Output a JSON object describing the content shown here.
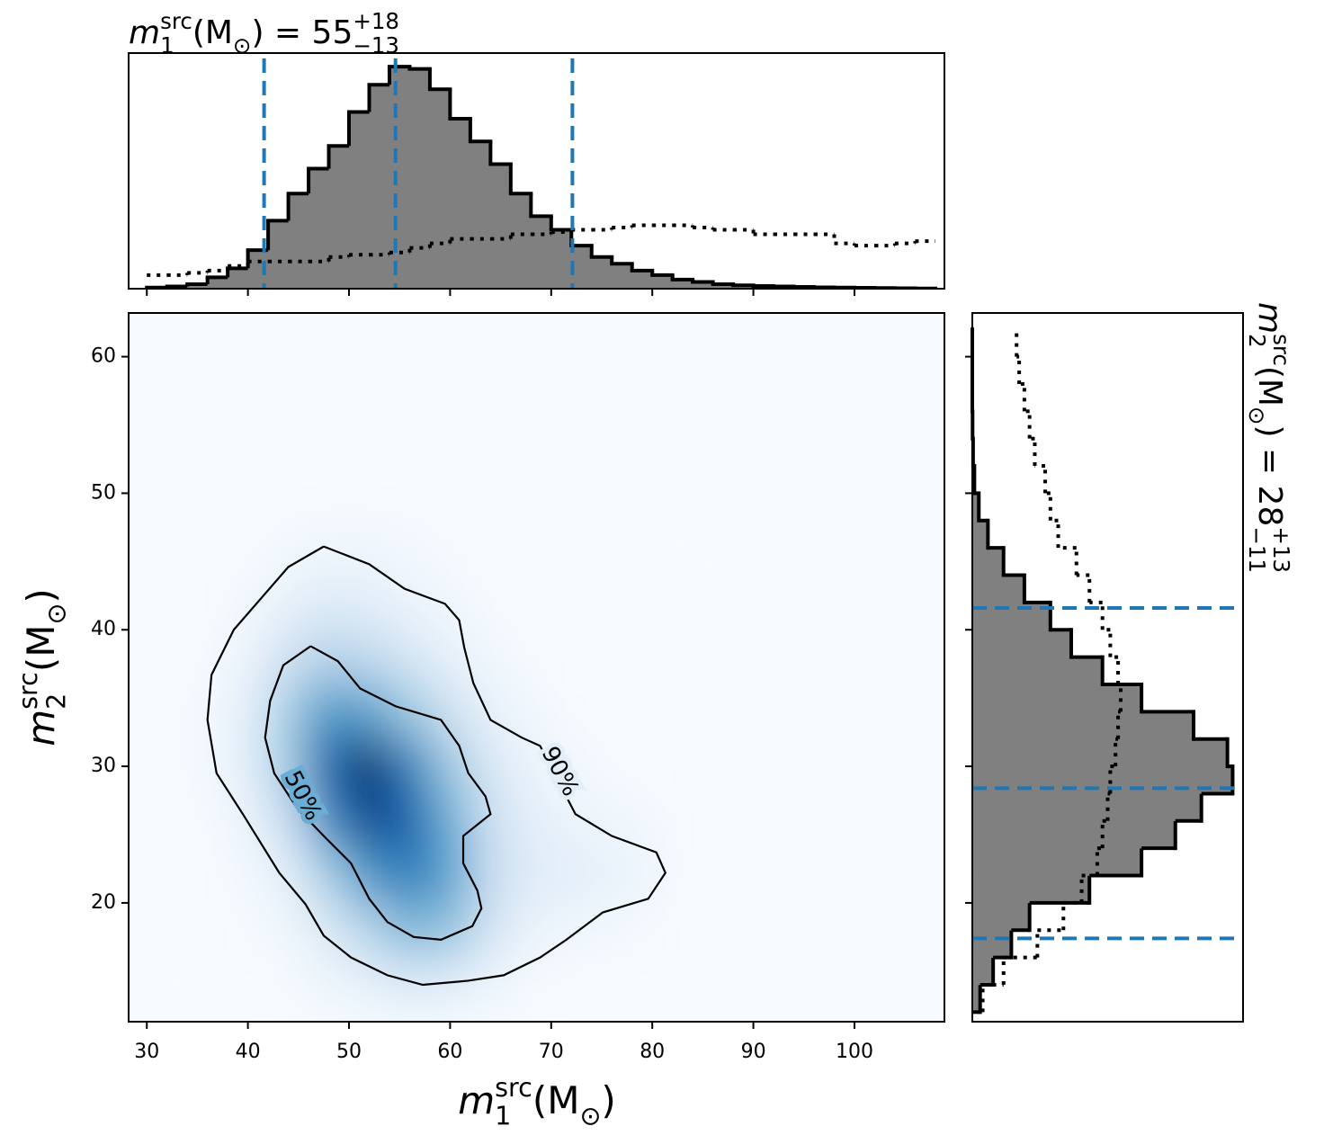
{
  "chart_data": [
    {
      "type": "heatmap",
      "x_label": [
        {
          "text": "m",
          "style": "italic"
        },
        {
          "text": "1",
          "style": "sub"
        },
        {
          "text": "src",
          "style": "sup",
          "stack": true
        },
        {
          "text": " (M"
        },
        {
          "text": "⊙",
          "style": "sub"
        },
        {
          "text": ")"
        }
      ],
      "y_label": [
        {
          "text": "m",
          "style": "italic"
        },
        {
          "text": "2",
          "style": "sub"
        },
        {
          "text": "src",
          "style": "sup",
          "stack": true
        },
        {
          "text": " (M"
        },
        {
          "text": "⊙",
          "style": "sub"
        },
        {
          "text": ")"
        }
      ],
      "xlim": [
        28.2,
        108.9
      ],
      "ylim": [
        11.3,
        63.2
      ],
      "xticks": [
        30,
        40,
        50,
        60,
        70,
        80,
        90,
        100
      ],
      "yticks": [
        20,
        30,
        40,
        50,
        60
      ],
      "colormap": [
        "#f7fbff",
        "#deebf7",
        "#c6dbef",
        "#9ecae1",
        "#6baed6",
        "#4292c6",
        "#2171b5",
        "#08519c",
        "#08306b"
      ],
      "density": {
        "x": [
          36,
          40,
          44,
          48,
          52,
          56,
          60,
          64,
          68,
          72,
          76,
          80,
          84
        ],
        "y": [
          46,
          42,
          38,
          34,
          30,
          26,
          22,
          18,
          14
        ],
        "values": [
          [
            0,
            0,
            2,
            4,
            4,
            2,
            1,
            0,
            0,
            0,
            0,
            0,
            0
          ],
          [
            0,
            2,
            8,
            12,
            10,
            6,
            3,
            1,
            0,
            0,
            0,
            0,
            0
          ],
          [
            1,
            6,
            20,
            30,
            26,
            16,
            8,
            3,
            1,
            0,
            0,
            0,
            0
          ],
          [
            2,
            10,
            35,
            60,
            55,
            38,
            20,
            8,
            3,
            1,
            0,
            0,
            0
          ],
          [
            2,
            10,
            38,
            80,
            100,
            70,
            38,
            15,
            6,
            3,
            1,
            0,
            0
          ],
          [
            1,
            6,
            25,
            65,
            90,
            80,
            50,
            22,
            10,
            6,
            4,
            2,
            0
          ],
          [
            0,
            2,
            10,
            35,
            60,
            70,
            55,
            25,
            12,
            10,
            8,
            4,
            0
          ],
          [
            0,
            1,
            4,
            14,
            30,
            45,
            40,
            18,
            6,
            4,
            2,
            1,
            0
          ],
          [
            0,
            0,
            1,
            4,
            8,
            12,
            10,
            5,
            1,
            0,
            0,
            0,
            0
          ]
        ]
      },
      "contours": [
        {
          "label": "90%",
          "x": [
            47.5,
            52.0,
            55.5,
            59.5,
            60.9,
            61.4,
            62.3,
            64.0,
            67.1,
            68.9,
            72.4,
            76.0,
            80.4,
            81.3,
            79.6,
            75.1,
            71.5,
            68.9,
            65.3,
            61.8,
            57.3,
            53.8,
            50.2,
            47.5,
            45.7,
            43.1,
            39.5,
            36.9,
            36.0,
            36.4,
            38.6,
            41.3,
            44.0,
            47.5
          ],
          "y": [
            46.1,
            44.8,
            43.0,
            41.9,
            40.7,
            38.7,
            36.1,
            33.4,
            32.1,
            31.5,
            26.5,
            24.9,
            23.7,
            22.2,
            20.3,
            19.3,
            17.3,
            16.0,
            14.7,
            14.3,
            14.0,
            14.7,
            16.0,
            17.6,
            19.9,
            22.2,
            26.5,
            29.5,
            33.4,
            36.7,
            40.0,
            42.3,
            44.6,
            46.1
          ]
        },
        {
          "label": "50%",
          "x": [
            46.2,
            48.9,
            51.1,
            54.6,
            59.1,
            60.9,
            61.8,
            63.5,
            64.0,
            61.3,
            61.3,
            62.7,
            63.1,
            62.2,
            59.1,
            56.4,
            53.8,
            52.0,
            50.2,
            47.5,
            44.9,
            42.6,
            41.7,
            42.2,
            43.5,
            46.2
          ],
          "y": [
            38.8,
            37.7,
            35.7,
            34.4,
            33.4,
            31.5,
            29.5,
            27.8,
            26.5,
            24.9,
            22.9,
            20.9,
            19.6,
            18.3,
            17.3,
            17.5,
            18.6,
            20.3,
            22.9,
            24.9,
            26.9,
            29.5,
            32.1,
            34.8,
            37.4,
            38.8
          ]
        }
      ]
    },
    {
      "type": "histogram",
      "orientation": "vertical",
      "title": [
        {
          "text": "m",
          "style": "italic"
        },
        {
          "text": "1",
          "style": "sub"
        },
        {
          "text": "src",
          "style": "sup",
          "stack": true
        },
        {
          "text": " (M"
        },
        {
          "text": "⊙",
          "style": "sub"
        },
        {
          "text": ") = 55"
        },
        {
          "text": "+18",
          "style": "sup"
        },
        {
          "text": "−13",
          "style": "sub",
          "stack": true
        }
      ],
      "xlim": [
        28.2,
        108.9
      ],
      "ylim": [
        0,
        104
      ],
      "xticks": [
        30,
        40,
        50,
        60,
        70,
        80,
        90,
        100
      ],
      "bins": [
        30,
        32,
        34,
        36,
        38,
        40,
        42,
        44,
        46,
        48,
        50,
        52,
        54,
        56,
        58,
        60,
        62,
        64,
        66,
        68,
        70,
        72,
        74,
        76,
        78,
        80,
        82,
        84,
        86,
        88,
        90,
        92,
        94,
        96,
        98,
        100,
        102,
        104,
        106,
        108
      ],
      "series": [
        {
          "color": "#808080",
          "edge": "#000000",
          "fill": true,
          "values": [
            0.5,
            1,
            2,
            5,
            9,
            17,
            30,
            42,
            53,
            63,
            78,
            90,
            98,
            97,
            88,
            75,
            65,
            55,
            42,
            32,
            26,
            19,
            14,
            11,
            8,
            6,
            4,
            3,
            2,
            1.5,
            1.2,
            1,
            0.8,
            0.6,
            0.5,
            0.4,
            0.3,
            0.2,
            0.1
          ]
        },
        {
          "color": "#000000",
          "fill": false,
          "dash": "dotted",
          "values": [
            6,
            6,
            7,
            8,
            10,
            12,
            12,
            12,
            12,
            14,
            15,
            15,
            16,
            18,
            20,
            22,
            22,
            22,
            24,
            24,
            25,
            26,
            26,
            27,
            28,
            28,
            28,
            27,
            26,
            26,
            24,
            24,
            24,
            24,
            20,
            19,
            19,
            20,
            21
          ]
        }
      ],
      "quantiles": [
        41.6,
        54.6,
        72.1
      ],
      "quantile_color": "#1f77b4"
    },
    {
      "type": "histogram",
      "orientation": "horizontal",
      "title": [
        {
          "text": "m",
          "style": "italic"
        },
        {
          "text": "2",
          "style": "sub"
        },
        {
          "text": "src",
          "style": "sup",
          "stack": true
        },
        {
          "text": " (M"
        },
        {
          "text": "⊙",
          "style": "sub"
        },
        {
          "text": ") = 28"
        },
        {
          "text": "+13",
          "style": "sup"
        },
        {
          "text": "−11",
          "style": "sub",
          "stack": true
        }
      ],
      "xlim": [
        0,
        104
      ],
      "ylim": [
        11.3,
        63.2
      ],
      "yticks": [
        20,
        30,
        40,
        50,
        60
      ],
      "bins": [
        12,
        14,
        16,
        18,
        20,
        22,
        24,
        26,
        28,
        30,
        32,
        34,
        36,
        38,
        40,
        42,
        44,
        46,
        48,
        50,
        52,
        54,
        56,
        58,
        60,
        62
      ],
      "series": [
        {
          "color": "#808080",
          "edge": "#000000",
          "fill": true,
          "values": [
            3,
            8,
            15,
            22,
            45,
            65,
            78,
            88,
            100,
            98,
            85,
            65,
            50,
            38,
            30,
            20,
            12,
            6,
            2.5,
            0.8,
            0.3,
            0.1,
            0,
            0,
            0
          ]
        },
        {
          "color": "#000000",
          "fill": false,
          "dash": "dotted",
          "values": [
            4,
            12,
            25,
            35,
            42,
            48,
            50,
            52,
            53,
            55,
            56,
            57,
            56,
            53,
            50,
            45,
            40,
            33,
            30,
            28,
            24,
            22,
            20,
            18,
            17
          ]
        }
      ],
      "quantiles": [
        17.4,
        28.4,
        41.6
      ],
      "quantile_color": "#1f77b4"
    }
  ]
}
